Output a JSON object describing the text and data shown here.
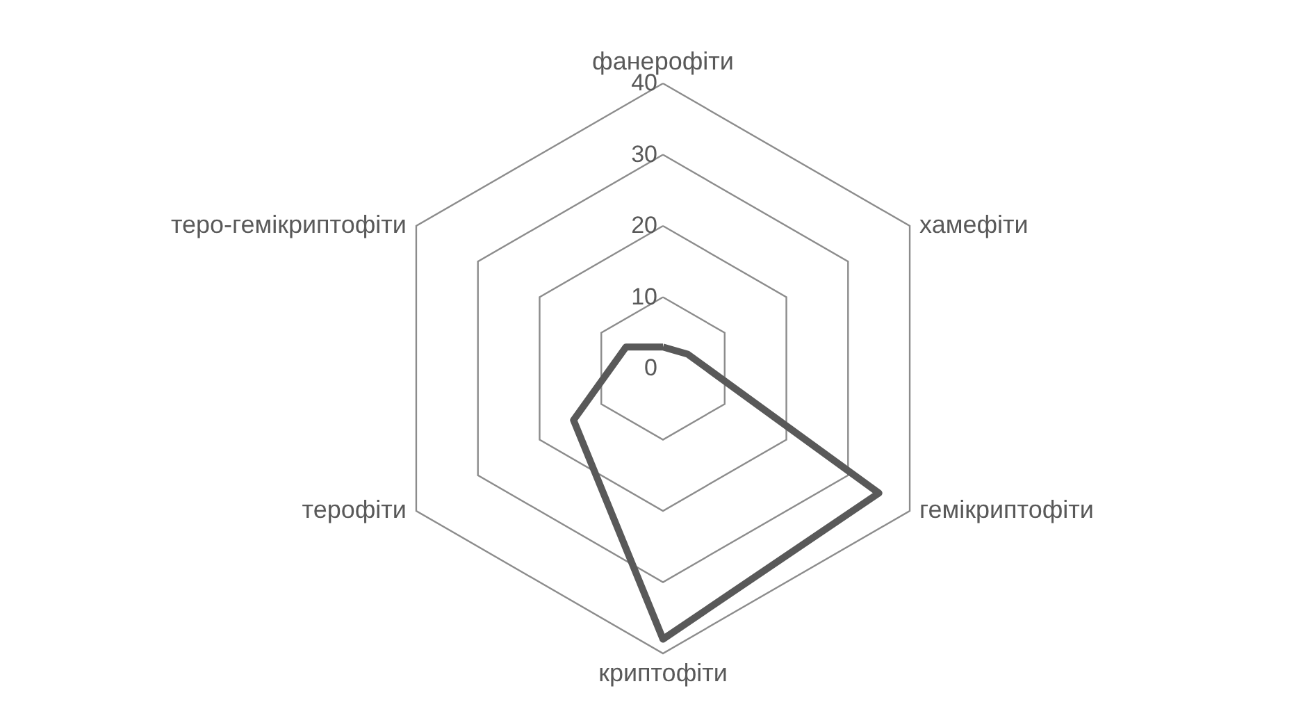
{
  "chart_data": {
    "type": "radar",
    "categories": [
      "фанерофіти",
      "хамефіти",
      "гемікриптофіти",
      "криптофіти",
      "терофіти",
      "теро-гемікриптофіти"
    ],
    "series": [
      {
        "color": "#595959",
        "values": [
          3,
          4,
          35,
          38,
          14.5,
          6
        ]
      }
    ],
    "ylim": [
      0,
      40
    ],
    "yticks": [
      0,
      10,
      20,
      30,
      40
    ],
    "grid": true
  }
}
